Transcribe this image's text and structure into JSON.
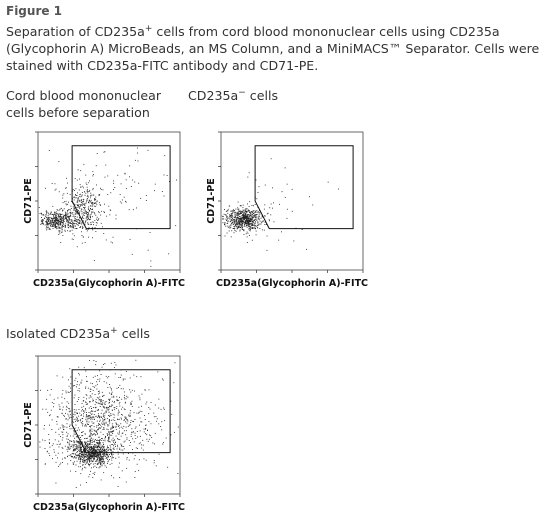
{
  "figure": {
    "title": "Figure 1",
    "caption_part1": "Separation of CD235a",
    "caption_sup": "+",
    "caption_part2": " cells from cord blood mononuclear cells using CD235a (Glycophorin A) MicroBeads, an MS Column, and a MiniMACS™ Separator. Cells were stained with CD235a-FITC antibody and CD71-PE."
  },
  "panels": [
    {
      "label_line1": "Cord blood mononuclear",
      "label_line2": "cells before separation",
      "label_sup": "",
      "label_tail": ""
    },
    {
      "label_line1": "CD235a",
      "label_line2": "",
      "label_sup": "−",
      "label_tail": " cells"
    },
    {
      "label_line1": "Isolated CD235a",
      "label_line2": "",
      "label_sup": "+",
      "label_tail": " cells"
    }
  ],
  "chart_data": [
    {
      "type": "scatter",
      "xlabel": "CD235a(Glycophorin A)-FITC",
      "ylabel": "CD71-PE",
      "xlim": [
        0,
        1
      ],
      "ylim": [
        0,
        1
      ],
      "clusters": [
        {
          "cx": 0.14,
          "cy": 0.36,
          "sx": 0.07,
          "sy": 0.035,
          "n": 420
        },
        {
          "cx": 0.32,
          "cy": 0.45,
          "sx": 0.07,
          "sy": 0.1,
          "n": 360
        },
        {
          "cx": 0.5,
          "cy": 0.5,
          "sx": 0.25,
          "sy": 0.22,
          "n": 110
        }
      ],
      "gate": [
        [
          0.24,
          0.9
        ],
        [
          0.93,
          0.9
        ],
        [
          0.93,
          0.3
        ],
        [
          0.34,
          0.3
        ],
        [
          0.24,
          0.5
        ]
      ]
    },
    {
      "type": "scatter",
      "xlabel": "CD235a(Glycophorin A)-FITC",
      "ylabel": "CD71-PE",
      "xlim": [
        0,
        1
      ],
      "ylim": [
        0,
        1
      ],
      "clusters": [
        {
          "cx": 0.15,
          "cy": 0.37,
          "sx": 0.07,
          "sy": 0.04,
          "n": 650
        },
        {
          "cx": 0.3,
          "cy": 0.45,
          "sx": 0.18,
          "sy": 0.15,
          "n": 60
        }
      ],
      "gate": [
        [
          0.24,
          0.9
        ],
        [
          0.93,
          0.9
        ],
        [
          0.93,
          0.3
        ],
        [
          0.34,
          0.3
        ],
        [
          0.24,
          0.5
        ]
      ]
    },
    {
      "type": "scatter",
      "xlabel": "CD235a(Glycophorin A)-FITC",
      "ylabel": "CD71-PE",
      "xlim": [
        0,
        1
      ],
      "ylim": [
        0,
        1
      ],
      "clusters": [
        {
          "cx": 0.37,
          "cy": 0.3,
          "sx": 0.07,
          "sy": 0.045,
          "n": 700
        },
        {
          "cx": 0.42,
          "cy": 0.52,
          "sx": 0.16,
          "sy": 0.17,
          "n": 750
        },
        {
          "cx": 0.55,
          "cy": 0.55,
          "sx": 0.22,
          "sy": 0.22,
          "n": 280
        },
        {
          "cx": 0.2,
          "cy": 0.35,
          "sx": 0.1,
          "sy": 0.08,
          "n": 60
        }
      ],
      "gate": [
        [
          0.24,
          0.9
        ],
        [
          0.93,
          0.9
        ],
        [
          0.93,
          0.3
        ],
        [
          0.34,
          0.3
        ],
        [
          0.24,
          0.5
        ]
      ]
    }
  ]
}
